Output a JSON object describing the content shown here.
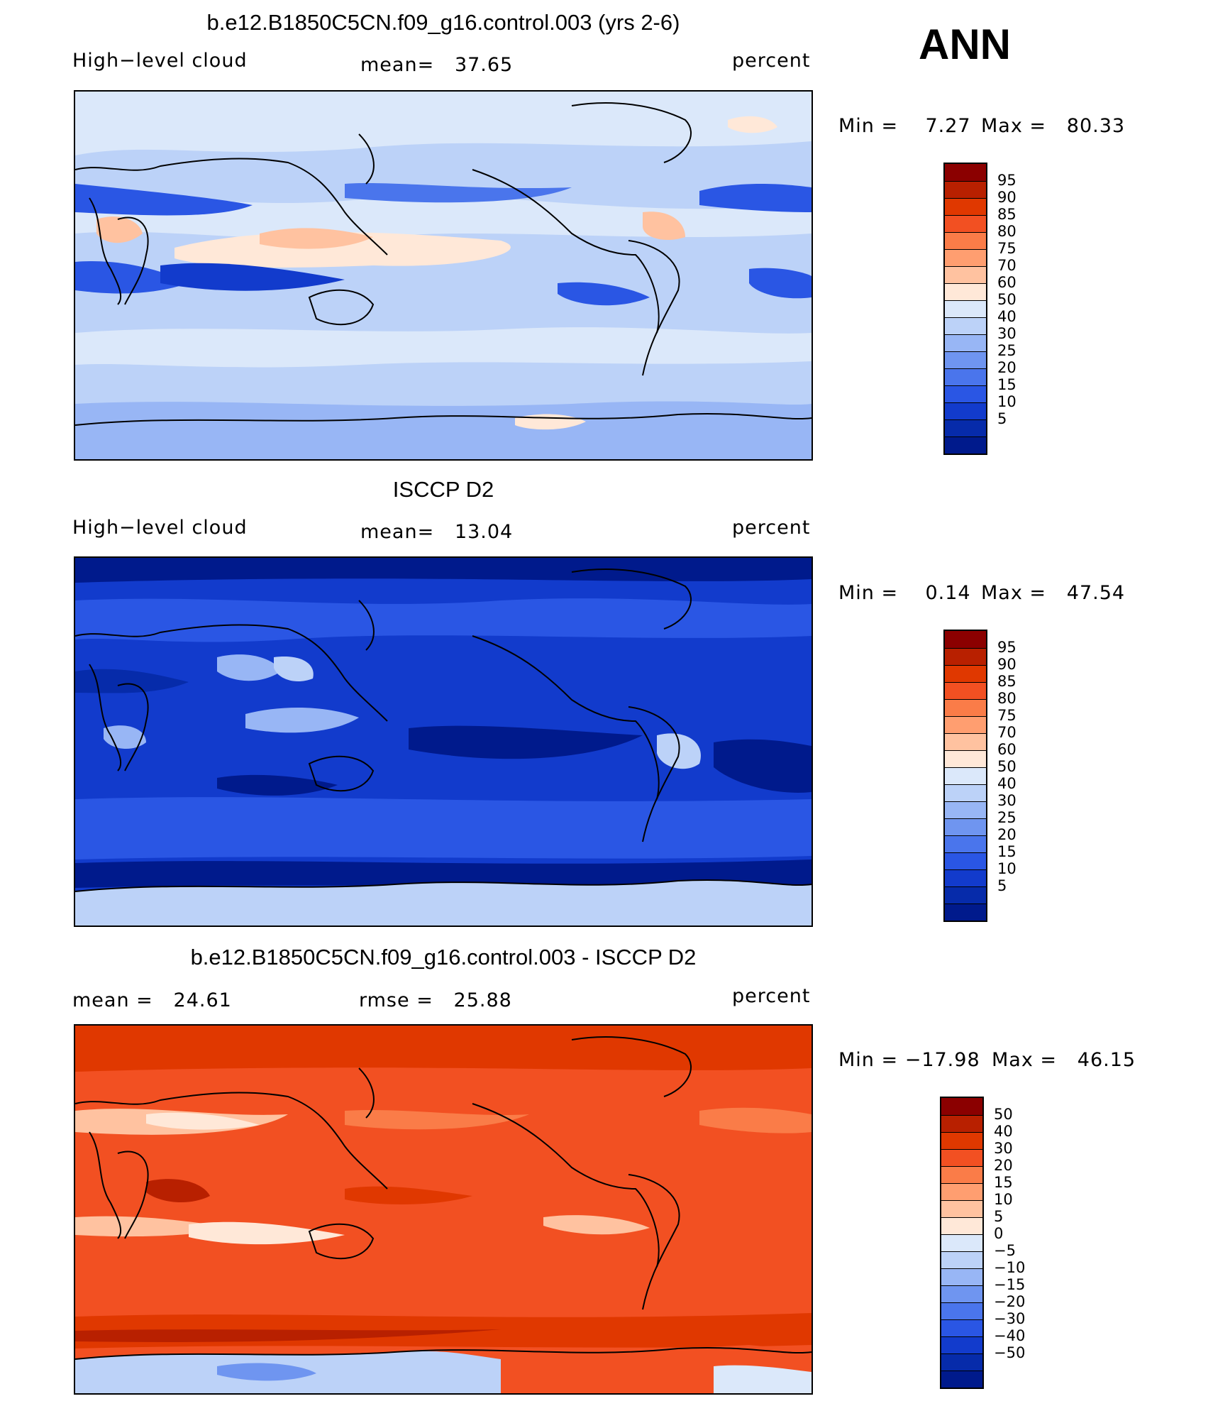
{
  "header": {
    "season": "ANN"
  },
  "chart_data": [
    {
      "type": "heatmap",
      "title": "b.e12.B1850C5CN.f09_g16.control.003 (yrs 2-6)",
      "left_label": "High−level cloud",
      "mean_text": "mean=   37.65",
      "units": "percent",
      "min_text": "Min =    7.27",
      "max_text": "Max =   80.33",
      "min": 7.27,
      "max": 80.33,
      "mean": 37.65,
      "colorbar": {
        "labels": [
          "95",
          "90",
          "85",
          "80",
          "75",
          "70",
          "60",
          "50",
          "40",
          "30",
          "25",
          "20",
          "15",
          "10",
          "5"
        ],
        "colors": [
          "#8b0000",
          "#b82000",
          "#e03800",
          "#f25022",
          "#fa7c48",
          "#ff9e70",
          "#ffc2a0",
          "#ffe8d8",
          "#dbe8fa",
          "#bcd2f8",
          "#98b6f5",
          "#6f95f0",
          "#4a75ec",
          "#2a56e4",
          "#123bcc",
          "#062baa",
          "#001a8c"
        ]
      }
    },
    {
      "type": "heatmap",
      "title": "ISCCP D2",
      "left_label": "High−level cloud",
      "mean_text": "mean=   13.04",
      "units": "percent",
      "min_text": "Min =    0.14",
      "max_text": "Max =   47.54",
      "min": 0.14,
      "max": 47.54,
      "mean": 13.04,
      "colorbar": {
        "labels": [
          "95",
          "90",
          "85",
          "80",
          "75",
          "70",
          "60",
          "50",
          "40",
          "30",
          "25",
          "20",
          "15",
          "10",
          "5"
        ],
        "colors": [
          "#8b0000",
          "#b82000",
          "#e03800",
          "#f25022",
          "#fa7c48",
          "#ff9e70",
          "#ffc2a0",
          "#ffe8d8",
          "#dbe8fa",
          "#bcd2f8",
          "#98b6f5",
          "#6f95f0",
          "#4a75ec",
          "#2a56e4",
          "#123bcc",
          "#062baa",
          "#001a8c"
        ]
      }
    },
    {
      "type": "heatmap",
      "title": "b.e12.B1850C5CN.f09_g16.control.003 - ISCCP D2",
      "mean_text": "mean =   24.61",
      "rmse_text": "rmse =   25.88",
      "units": "percent",
      "min_text": "Min = −17.98",
      "max_text": "Max =   46.15",
      "min": -17.98,
      "max": 46.15,
      "mean": 24.61,
      "rmse": 25.88,
      "colorbar": {
        "labels": [
          "50",
          "40",
          "30",
          "20",
          "15",
          "10",
          "5",
          "0",
          "−5",
          "−10",
          "−15",
          "−20",
          "−30",
          "−40",
          "−50"
        ],
        "colors": [
          "#8b0000",
          "#b82000",
          "#e03800",
          "#f25022",
          "#fa7c48",
          "#ff9e70",
          "#ffc2a0",
          "#ffe8d8",
          "#dbe8fa",
          "#bcd2f8",
          "#98b6f5",
          "#6f95f0",
          "#4a75ec",
          "#2a56e4",
          "#123bcc",
          "#062baa",
          "#001a8c"
        ]
      }
    }
  ]
}
